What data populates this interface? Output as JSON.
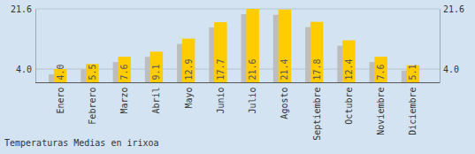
{
  "chart_data": {
    "type": "bar",
    "title": "Temperaturas Medias en irixoa",
    "categories": [
      "Enero",
      "Febrero",
      "Marzo",
      "Abril",
      "Mayo",
      "Junio",
      "Julio",
      "Agosto",
      "Septiembre",
      "Octubre",
      "Noviembre",
      "Diciembre"
    ],
    "values": [
      4.0,
      5.5,
      7.6,
      9.1,
      12.9,
      17.7,
      21.6,
      21.4,
      17.8,
      12.4,
      7.6,
      5.1
    ],
    "value_labels": [
      "4.0",
      "5.5",
      "7.6",
      "9.1",
      "12.9",
      "17.7",
      "21.6",
      "21.4",
      "17.8",
      "12.4",
      "7.6",
      "5.1"
    ],
    "color": "#ffcc00",
    "ylim": [
      0,
      21.6
    ],
    "yticks": [
      {
        "value": 4.0,
        "label": "4.0"
      },
      21.6
    ],
    "grid": true,
    "data_labels": true
  }
}
